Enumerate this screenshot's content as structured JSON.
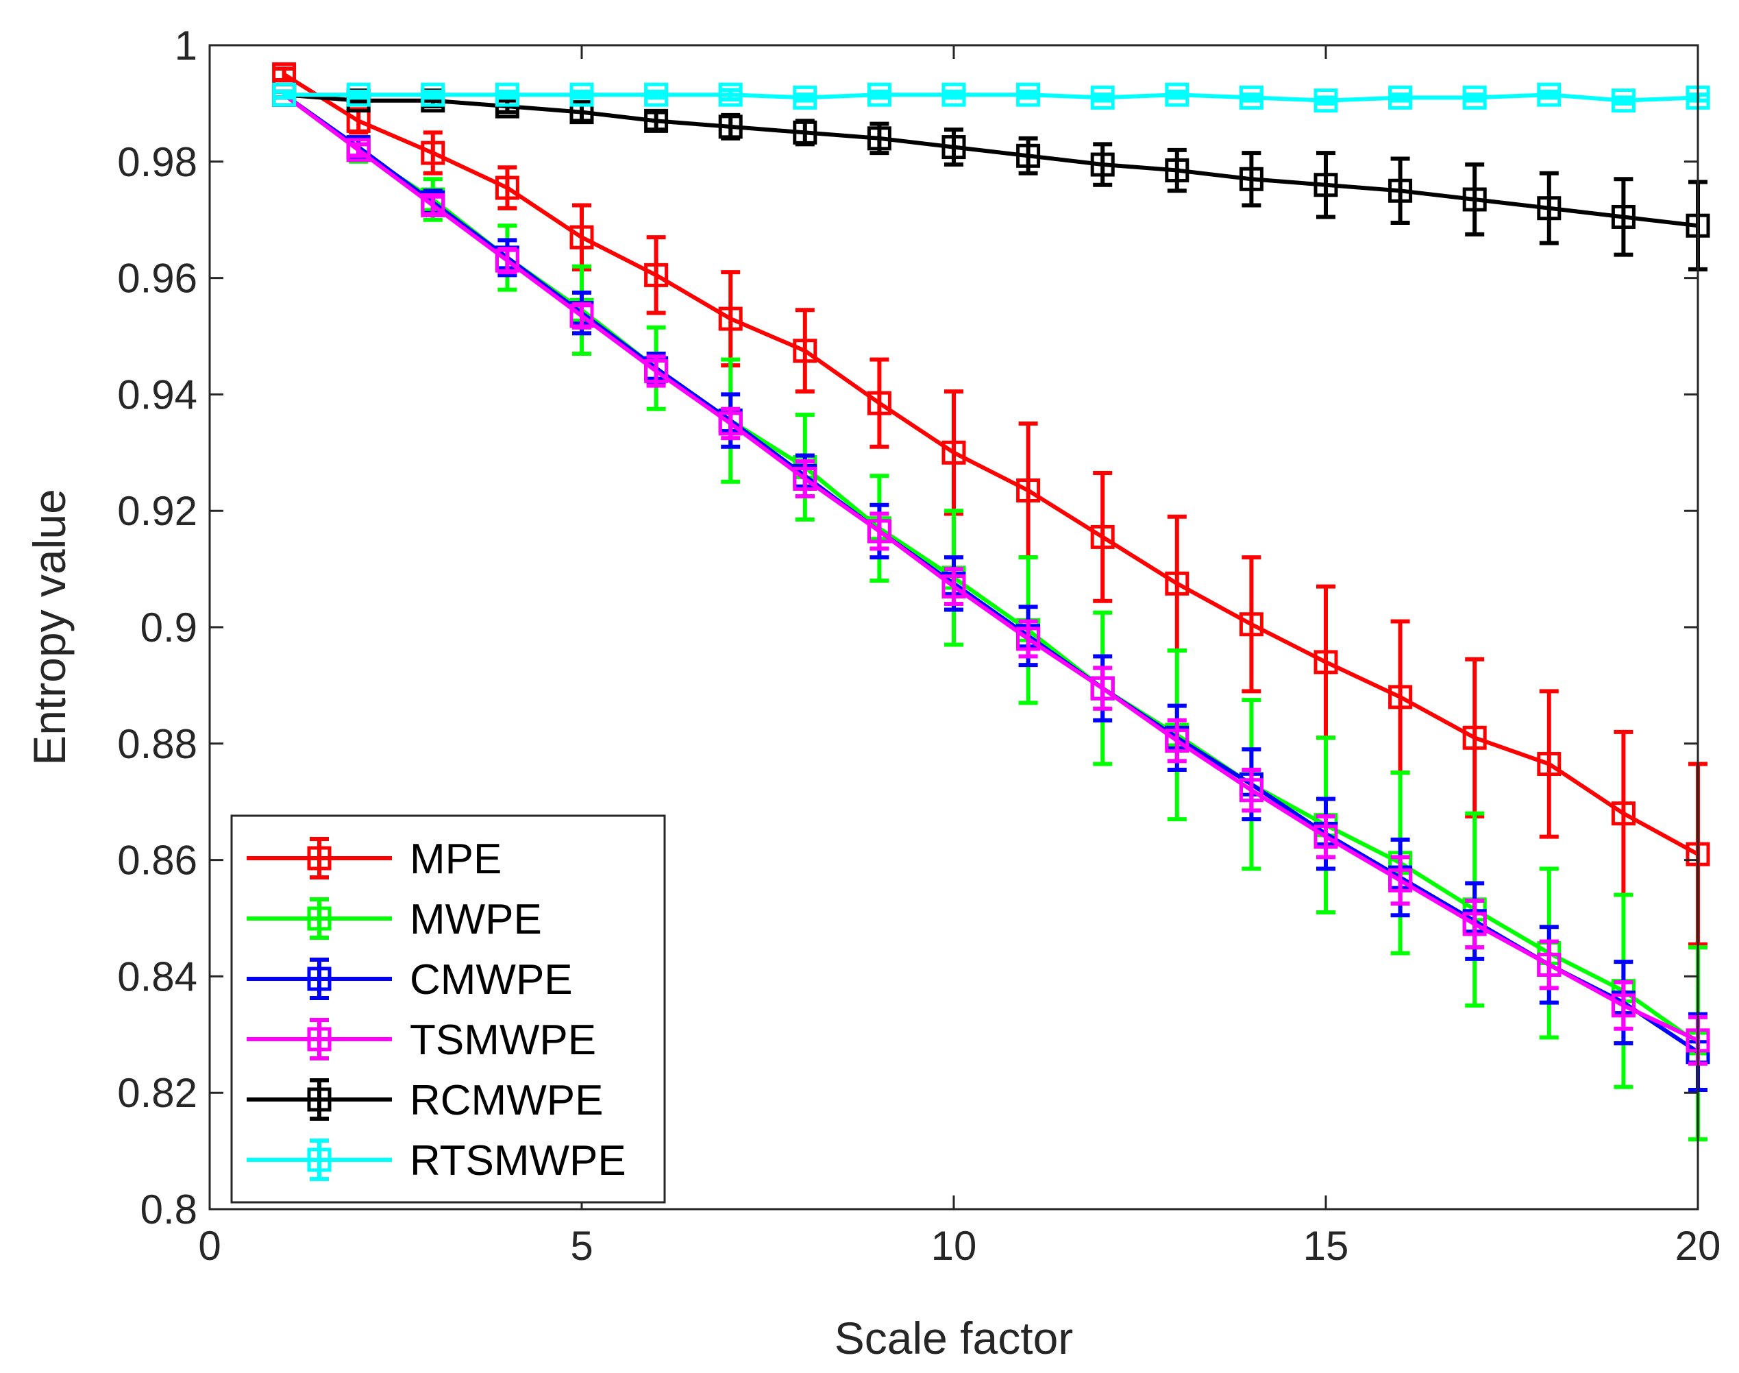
{
  "chart_data": {
    "type": "line",
    "title": "",
    "xlabel": "Scale factor",
    "ylabel": "Entropy value",
    "xlim": [
      0,
      20
    ],
    "ylim": [
      0.8,
      1
    ],
    "xticks": [
      0,
      5,
      10,
      15,
      20
    ],
    "xtick_labels": [
      "0",
      "5",
      "10",
      "15",
      "20"
    ],
    "yticks": [
      0.8,
      0.82,
      0.84,
      0.86,
      0.88,
      0.9,
      0.92,
      0.94,
      0.96,
      0.98,
      1
    ],
    "ytick_labels": [
      "0.8",
      "0.82",
      "0.84",
      "0.86",
      "0.88",
      "0.9",
      "0.92",
      "0.94",
      "0.96",
      "0.98",
      "1"
    ],
    "grid": false,
    "legend_position": "bottom-left",
    "marker": "square",
    "error_bars": true,
    "x": [
      1,
      2,
      3,
      4,
      5,
      6,
      7,
      8,
      9,
      10,
      11,
      12,
      13,
      14,
      15,
      16,
      17,
      18,
      19,
      20
    ],
    "series": [
      {
        "name": "MPE",
        "color": "#ff0000",
        "values": [
          0.995,
          0.987,
          0.9815,
          0.9755,
          0.967,
          0.9605,
          0.953,
          0.9475,
          0.9385,
          0.93,
          0.9235,
          0.9155,
          0.9075,
          0.9005,
          0.894,
          0.888,
          0.881,
          0.8765,
          0.868,
          0.861
        ],
        "errors": [
          0.001,
          0.002,
          0.0035,
          0.0035,
          0.0055,
          0.0065,
          0.008,
          0.007,
          0.0075,
          0.0105,
          0.0115,
          0.011,
          0.0115,
          0.0115,
          0.013,
          0.013,
          0.0135,
          0.0125,
          0.014,
          0.0155
        ]
      },
      {
        "name": "MWPE",
        "color": "#00ff00",
        "values": [
          0.9915,
          0.982,
          0.9735,
          0.9635,
          0.9545,
          0.9445,
          0.9355,
          0.9275,
          0.917,
          0.9085,
          0.8995,
          0.8895,
          0.8815,
          0.873,
          0.866,
          0.8595,
          0.8515,
          0.844,
          0.8375,
          0.8285
        ],
        "errors": [
          0.0005,
          0.002,
          0.0035,
          0.0055,
          0.0075,
          0.007,
          0.0105,
          0.009,
          0.009,
          0.0115,
          0.0125,
          0.013,
          0.0145,
          0.0145,
          0.015,
          0.0155,
          0.0165,
          0.0145,
          0.0165,
          0.0165
        ]
      },
      {
        "name": "CMWPE",
        "color": "#0000ff",
        "values": [
          0.9915,
          0.9825,
          0.973,
          0.9635,
          0.954,
          0.9445,
          0.9355,
          0.926,
          0.9165,
          0.9075,
          0.8985,
          0.8895,
          0.881,
          0.873,
          0.8645,
          0.857,
          0.8495,
          0.842,
          0.8355,
          0.827
        ],
        "errors": [
          0.0005,
          0.0015,
          0.002,
          0.003,
          0.0035,
          0.0025,
          0.0045,
          0.0035,
          0.0045,
          0.0045,
          0.005,
          0.0055,
          0.0055,
          0.006,
          0.006,
          0.0065,
          0.0065,
          0.0065,
          0.007,
          0.0065
        ]
      },
      {
        "name": "TSMWPE",
        "color": "#ff00ff",
        "values": [
          0.9915,
          0.982,
          0.9725,
          0.963,
          0.9535,
          0.944,
          0.935,
          0.9255,
          0.9165,
          0.907,
          0.898,
          0.8895,
          0.8805,
          0.872,
          0.864,
          0.8565,
          0.849,
          0.842,
          0.835,
          0.829
        ],
        "errors": [
          0.0005,
          0.001,
          0.0015,
          0.002,
          0.002,
          0.0025,
          0.0025,
          0.003,
          0.003,
          0.003,
          0.003,
          0.0035,
          0.0035,
          0.0035,
          0.0035,
          0.004,
          0.004,
          0.004,
          0.004,
          0.004
        ]
      },
      {
        "name": "RCMWPE",
        "color": "#000000",
        "values": [
          0.9915,
          0.9905,
          0.9905,
          0.9895,
          0.9885,
          0.987,
          0.986,
          0.985,
          0.984,
          0.9825,
          0.981,
          0.9795,
          0.9785,
          0.977,
          0.976,
          0.975,
          0.9735,
          0.972,
          0.9705,
          0.969
        ],
        "errors": [
          0.0005,
          0.0005,
          0.001,
          0.001,
          0.0015,
          0.0015,
          0.002,
          0.002,
          0.0025,
          0.003,
          0.003,
          0.0035,
          0.0035,
          0.0045,
          0.0055,
          0.0055,
          0.006,
          0.006,
          0.0065,
          0.0075
        ]
      },
      {
        "name": "RTSMWPE",
        "color": "#00ffff",
        "values": [
          0.9915,
          0.9915,
          0.9915,
          0.9915,
          0.9915,
          0.9915,
          0.9915,
          0.991,
          0.9915,
          0.9915,
          0.9915,
          0.991,
          0.9915,
          0.991,
          0.9905,
          0.991,
          0.991,
          0.9915,
          0.9905,
          0.991
        ],
        "errors": [
          0.0005,
          0.0005,
          0.0005,
          0.0005,
          0.0005,
          0.0005,
          0.0008,
          0.0005,
          0.0005,
          0.0005,
          0.0005,
          0.0005,
          0.0005,
          0.0005,
          0.0005,
          0.0005,
          0.0005,
          0.0005,
          0.0005,
          0.0005
        ]
      }
    ]
  }
}
